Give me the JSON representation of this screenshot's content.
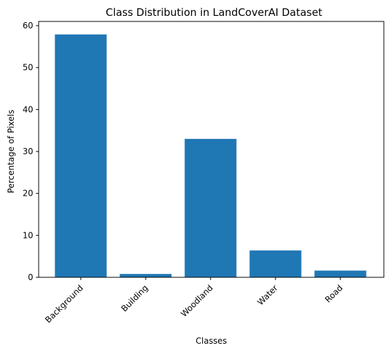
{
  "chart_data": {
    "type": "bar",
    "title": "Class Distribution in LandCoverAI Dataset",
    "xlabel": "Classes",
    "ylabel": "Percentage of Pixels",
    "categories": [
      "Background",
      "Building",
      "Woodland",
      "Water",
      "Road"
    ],
    "values": [
      57.9,
      0.8,
      33.0,
      6.4,
      1.6
    ],
    "ylim": [
      0,
      61
    ],
    "yticks": [
      0,
      10,
      20,
      30,
      40,
      50,
      60
    ],
    "grid": false,
    "bar_color": "#1f77b4"
  }
}
